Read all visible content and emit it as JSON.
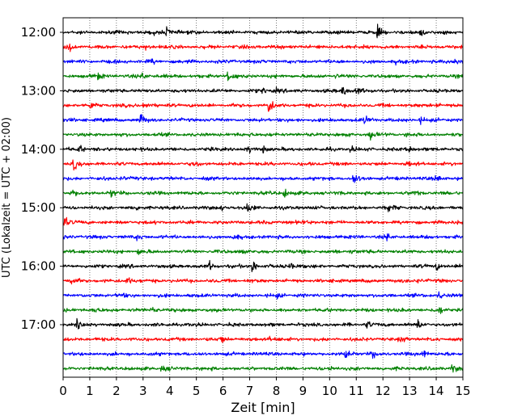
{
  "chart_data": {
    "type": "line",
    "title": "",
    "xlabel": "Zeit  [min]",
    "ylabel": "UTC (Lokalzeit = UTC + 02:00)",
    "xlim": [
      0,
      15
    ],
    "xticks": [
      0,
      1,
      2,
      3,
      4,
      5,
      6,
      7,
      8,
      9,
      10,
      11,
      12,
      13,
      14,
      15
    ],
    "x_tick_labels": [
      "0",
      "1",
      "2",
      "3",
      "4",
      "5",
      "6",
      "7",
      "8",
      "9",
      "10",
      "11",
      "12",
      "13",
      "14",
      "15"
    ],
    "y_tick_labels": [
      "12:00",
      "13:00",
      "14:00",
      "15:00",
      "16:00",
      "17:00"
    ],
    "y_tick_hours": [
      12,
      13,
      14,
      15,
      16,
      17
    ],
    "row_interval_minutes": 15,
    "start_time": "12:00",
    "grid": "vertical dotted",
    "trace_colors": [
      "#000000",
      "#ff0000",
      "#0000ff",
      "#008000"
    ],
    "rows": [
      {
        "start": "12:00",
        "color": "#000000",
        "events": [
          [
            3.9,
            1.0
          ],
          [
            11.8,
            0.85
          ],
          [
            13.4,
            0.6
          ],
          [
            3.4,
            0.3
          ]
        ]
      },
      {
        "start": "12:15",
        "color": "#ff0000",
        "events": [
          [
            0.2,
            0.8
          ],
          [
            3.1,
            0.3
          ],
          [
            11.2,
            0.3
          ]
        ]
      },
      {
        "start": "12:30",
        "color": "#0000ff",
        "events": [
          [
            14.7,
            0.8
          ],
          [
            3.3,
            0.3
          ],
          [
            12.5,
            0.3
          ]
        ]
      },
      {
        "start": "12:45",
        "color": "#008000",
        "events": [
          [
            1.3,
            0.6
          ],
          [
            3.0,
            0.7
          ],
          [
            6.2,
            1.0
          ],
          [
            10.2,
            0.3
          ]
        ]
      },
      {
        "start": "13:00",
        "color": "#000000",
        "events": [
          [
            10.5,
            1.0
          ],
          [
            11.0,
            0.6
          ],
          [
            7.5,
            0.4
          ],
          [
            8.0,
            0.3
          ]
        ]
      },
      {
        "start": "13:15",
        "color": "#ff0000",
        "events": [
          [
            1.0,
            0.6
          ],
          [
            3.0,
            0.6
          ],
          [
            7.7,
            1.6
          ],
          [
            14.0,
            0.3
          ]
        ]
      },
      {
        "start": "13:30",
        "color": "#0000ff",
        "events": [
          [
            2.9,
            1.0
          ],
          [
            11.3,
            0.6
          ],
          [
            13.4,
            0.5
          ]
        ]
      },
      {
        "start": "13:45",
        "color": "#008000",
        "events": [
          [
            11.5,
            0.7
          ],
          [
            7.0,
            0.3
          ],
          [
            12.9,
            0.4
          ]
        ]
      },
      {
        "start": "14:00",
        "color": "#000000",
        "events": [
          [
            0.6,
            0.6
          ],
          [
            6.9,
            0.7
          ],
          [
            7.5,
            0.5
          ],
          [
            10.8,
            0.4
          ],
          [
            13.0,
            0.5
          ]
        ]
      },
      {
        "start": "14:15",
        "color": "#ff0000",
        "events": [
          [
            0.4,
            1.0
          ],
          [
            4.9,
            0.5
          ],
          [
            12.9,
            0.4
          ]
        ]
      },
      {
        "start": "14:30",
        "color": "#0000ff",
        "events": [
          [
            10.9,
            1.0
          ],
          [
            14.0,
            0.6
          ],
          [
            2.2,
            0.3
          ]
        ]
      },
      {
        "start": "14:45",
        "color": "#008000",
        "events": [
          [
            0.3,
            0.6
          ],
          [
            1.8,
            0.5
          ],
          [
            8.3,
            0.9
          ],
          [
            13.1,
            0.5
          ]
        ]
      },
      {
        "start": "15:00",
        "color": "#000000",
        "events": [
          [
            6.9,
            1.0
          ],
          [
            12.2,
            0.7
          ],
          [
            5.9,
            0.4
          ],
          [
            2.8,
            0.3
          ]
        ]
      },
      {
        "start": "15:15",
        "color": "#ff0000",
        "events": [
          [
            0.05,
            0.9
          ],
          [
            9.0,
            0.3
          ],
          [
            14.8,
            0.3
          ]
        ]
      },
      {
        "start": "15:30",
        "color": "#0000ff",
        "events": [
          [
            2.8,
            0.5
          ],
          [
            12.1,
            0.6
          ],
          [
            6.4,
            0.3
          ]
        ]
      },
      {
        "start": "15:45",
        "color": "#008000",
        "events": [
          [
            2.8,
            0.4
          ],
          [
            6.6,
            0.4
          ],
          [
            10.8,
            0.3
          ]
        ]
      },
      {
        "start": "16:00",
        "color": "#000000",
        "events": [
          [
            7.1,
            1.2
          ],
          [
            5.5,
            0.6
          ],
          [
            8.5,
            0.6
          ],
          [
            14.0,
            0.6
          ]
        ]
      },
      {
        "start": "16:15",
        "color": "#ff0000",
        "events": [
          [
            0.3,
            0.8
          ],
          [
            2.4,
            0.6
          ],
          [
            13.3,
            0.3
          ]
        ]
      },
      {
        "start": "16:30",
        "color": "#0000ff",
        "events": [
          [
            14.1,
            0.6
          ],
          [
            2.1,
            0.3
          ],
          [
            8.0,
            0.3
          ]
        ]
      },
      {
        "start": "16:45",
        "color": "#008000",
        "events": [
          [
            1.1,
            0.6
          ],
          [
            3.3,
            0.4
          ],
          [
            14.1,
            0.6
          ]
        ]
      },
      {
        "start": "17:00",
        "color": "#000000",
        "events": [
          [
            0.5,
            0.7
          ],
          [
            11.4,
            0.6
          ],
          [
            13.3,
            0.8
          ]
        ]
      },
      {
        "start": "17:15",
        "color": "#ff0000",
        "events": [
          [
            5.9,
            0.8
          ],
          [
            7.7,
            0.4
          ],
          [
            12.7,
            0.4
          ]
        ]
      },
      {
        "start": "17:30",
        "color": "#0000ff",
        "events": [
          [
            10.6,
            0.8
          ],
          [
            11.6,
            0.6
          ],
          [
            13.5,
            0.6
          ]
        ]
      },
      {
        "start": "17:45",
        "color": "#008000",
        "events": [
          [
            14.6,
            0.7
          ],
          [
            3.7,
            0.4
          ],
          [
            10.0,
            0.3
          ]
        ]
      }
    ]
  }
}
